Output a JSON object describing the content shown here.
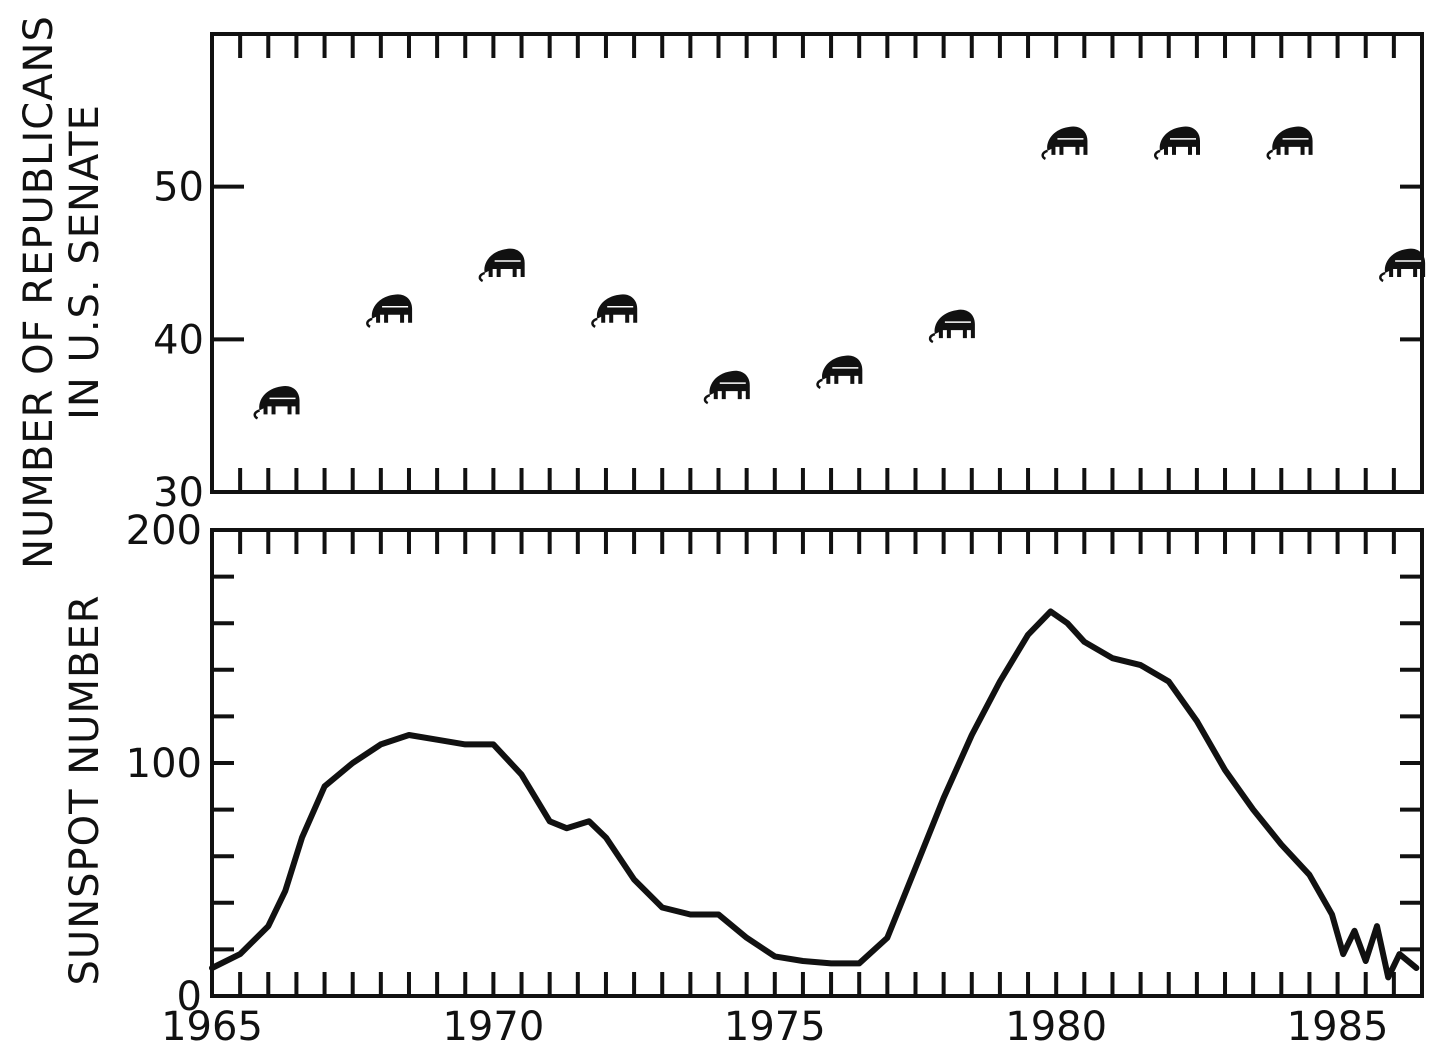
{
  "chart_data": [
    {
      "type": "scatter",
      "title": "",
      "ylabel_lines": [
        "NUMBER OF REPUBLICANS",
        "IN U.S. SENATE"
      ],
      "xlabel": "",
      "ylim": [
        30,
        60
      ],
      "xlim": [
        1965,
        1986.5
      ],
      "yticks": [
        30,
        40,
        50
      ],
      "yticklabels": [
        "30",
        "40",
        "50"
      ],
      "marker": "elephant-icon",
      "grid": false,
      "series": [
        {
          "x": [
            1966.2,
            1968.2,
            1970.2,
            1972.2,
            1974.2,
            1976.2,
            1978.2,
            1980.2,
            1982.2,
            1984.2,
            1986.2
          ],
          "y": [
            36,
            42,
            45,
            42,
            37,
            38,
            41,
            53,
            53,
            53,
            45
          ]
        }
      ],
      "colors": {
        "ink": "#111111",
        "background": "#ffffff"
      }
    },
    {
      "type": "line",
      "title": "",
      "ylabel": "SUNSPOT NUMBER",
      "xlabel": "",
      "ylim": [
        0,
        200
      ],
      "xlim": [
        1965,
        1986.5
      ],
      "yticks": [
        0,
        100,
        200
      ],
      "yticklabels": [
        "0",
        "100",
        "200"
      ],
      "xticks": [
        1965,
        1970,
        1975,
        1980,
        1985
      ],
      "xticklabels": [
        "1965",
        "1970",
        "1975",
        "1980",
        "1985"
      ],
      "grid": false,
      "series": [
        {
          "x": [
            1965.0,
            1965.5,
            1966.0,
            1966.3,
            1966.6,
            1967.0,
            1967.5,
            1968.0,
            1968.5,
            1969.0,
            1969.5,
            1970.0,
            1970.5,
            1971.0,
            1971.3,
            1971.7,
            1972.0,
            1972.5,
            1973.0,
            1973.5,
            1974.0,
            1974.5,
            1975.0,
            1975.5,
            1976.0,
            1976.5,
            1977.0,
            1977.5,
            1978.0,
            1978.5,
            1979.0,
            1979.5,
            1979.9,
            1980.2,
            1980.5,
            1981.0,
            1981.5,
            1982.0,
            1982.5,
            1983.0,
            1983.5,
            1984.0,
            1984.5,
            1984.9,
            1985.1,
            1985.3,
            1985.5,
            1985.7,
            1985.9,
            1986.1,
            1986.4
          ],
          "y": [
            12,
            18,
            30,
            45,
            68,
            90,
            100,
            108,
            112,
            110,
            108,
            108,
            95,
            75,
            72,
            75,
            68,
            50,
            38,
            35,
            35,
            25,
            17,
            15,
            14,
            14,
            25,
            55,
            85,
            112,
            135,
            155,
            165,
            160,
            152,
            145,
            142,
            135,
            118,
            97,
            80,
            65,
            52,
            35,
            18,
            28,
            15,
            30,
            8,
            18,
            12
          ]
        }
      ],
      "colors": {
        "line": "#111111",
        "background": "#ffffff"
      }
    }
  ]
}
